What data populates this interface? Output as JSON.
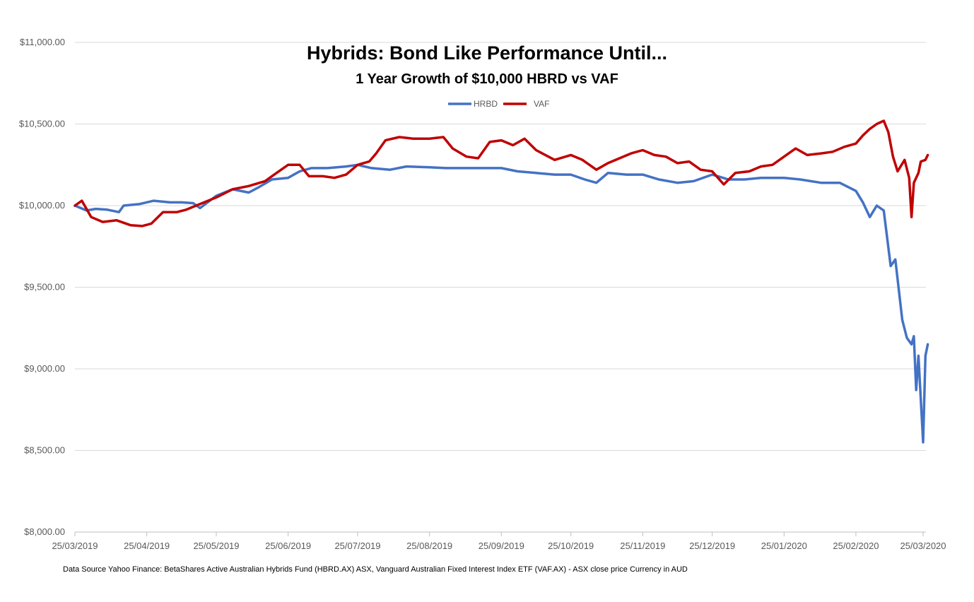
{
  "chart_data": {
    "type": "line",
    "title": "Hybrids: Bond Like Performance Until...",
    "subtitle": "1 Year Growth of $10,000 HBRD vs VAF",
    "ylim": [
      8000,
      11000
    ],
    "y_ticks": [
      "$8,000.00",
      "$8,500.00",
      "$9,000.00",
      "$9,500.00",
      "$10,000.00",
      "$10,500.00",
      "$11,000.00"
    ],
    "y_tick_values": [
      8000,
      8500,
      9000,
      9500,
      10000,
      10500,
      11000
    ],
    "xlim": [
      "2019-03-25",
      "2020-03-27"
    ],
    "x_ticks": [
      "25/03/2019",
      "25/04/2019",
      "25/05/2019",
      "25/06/2019",
      "25/07/2019",
      "25/08/2019",
      "25/09/2019",
      "25/10/2019",
      "25/11/2019",
      "25/12/2019",
      "25/01/2020",
      "25/02/2020",
      "25/03/2020"
    ],
    "x_tick_dates": [
      "2019-03-25",
      "2019-04-25",
      "2019-05-25",
      "2019-06-25",
      "2019-07-25",
      "2019-08-25",
      "2019-09-25",
      "2019-10-25",
      "2019-11-25",
      "2019-12-25",
      "2020-01-25",
      "2020-02-25",
      "2020-03-25"
    ],
    "grid": true,
    "legend_position": "top-center",
    "series": [
      {
        "name": "HRBD",
        "color": "#4472C4",
        "points": [
          [
            "2019-03-25",
            10000
          ],
          [
            "2019-03-30",
            9970
          ],
          [
            "2019-04-03",
            9980
          ],
          [
            "2019-04-08",
            9975
          ],
          [
            "2019-04-13",
            9960
          ],
          [
            "2019-04-15",
            10000
          ],
          [
            "2019-04-22",
            10010
          ],
          [
            "2019-04-28",
            10030
          ],
          [
            "2019-05-05",
            10020
          ],
          [
            "2019-05-10",
            10020
          ],
          [
            "2019-05-15",
            10015
          ],
          [
            "2019-05-18",
            9985
          ],
          [
            "2019-05-25",
            10060
          ],
          [
            "2019-06-01",
            10100
          ],
          [
            "2019-06-08",
            10080
          ],
          [
            "2019-06-12",
            10110
          ],
          [
            "2019-06-18",
            10160
          ],
          [
            "2019-06-25",
            10170
          ],
          [
            "2019-06-30",
            10210
          ],
          [
            "2019-07-05",
            10230
          ],
          [
            "2019-07-12",
            10230
          ],
          [
            "2019-07-20",
            10240
          ],
          [
            "2019-07-25",
            10250
          ],
          [
            "2019-07-31",
            10230
          ],
          [
            "2019-08-08",
            10220
          ],
          [
            "2019-08-15",
            10240
          ],
          [
            "2019-08-25",
            10235
          ],
          [
            "2019-09-01",
            10230
          ],
          [
            "2019-09-10",
            10230
          ],
          [
            "2019-09-20",
            10230
          ],
          [
            "2019-09-25",
            10230
          ],
          [
            "2019-10-02",
            10210
          ],
          [
            "2019-10-10",
            10200
          ],
          [
            "2019-10-18",
            10190
          ],
          [
            "2019-10-25",
            10190
          ],
          [
            "2019-10-31",
            10160
          ],
          [
            "2019-11-05",
            10140
          ],
          [
            "2019-11-10",
            10200
          ],
          [
            "2019-11-18",
            10190
          ],
          [
            "2019-11-25",
            10190
          ],
          [
            "2019-12-02",
            10160
          ],
          [
            "2019-12-10",
            10140
          ],
          [
            "2019-12-17",
            10150
          ],
          [
            "2019-12-25",
            10190
          ],
          [
            "2020-01-01",
            10160
          ],
          [
            "2020-01-08",
            10160
          ],
          [
            "2020-01-15",
            10170
          ],
          [
            "2020-01-25",
            10170
          ],
          [
            "2020-02-01",
            10160
          ],
          [
            "2020-02-10",
            10140
          ],
          [
            "2020-02-18",
            10140
          ],
          [
            "2020-02-25",
            10090
          ],
          [
            "2020-02-28",
            10020
          ],
          [
            "2020-03-02",
            9930
          ],
          [
            "2020-03-05",
            10000
          ],
          [
            "2020-03-08",
            9970
          ],
          [
            "2020-03-11",
            9630
          ],
          [
            "2020-03-13",
            9670
          ],
          [
            "2020-03-16",
            9300
          ],
          [
            "2020-03-18",
            9190
          ],
          [
            "2020-03-20",
            9150
          ],
          [
            "2020-03-21",
            9200
          ],
          [
            "2020-03-22",
            8870
          ],
          [
            "2020-03-23",
            9080
          ],
          [
            "2020-03-25",
            8550
          ],
          [
            "2020-03-26",
            9080
          ],
          [
            "2020-03-27",
            9150
          ]
        ]
      },
      {
        "name": "VAF",
        "color": "#C00000",
        "points": [
          [
            "2019-03-25",
            10000
          ],
          [
            "2019-03-28",
            10030
          ],
          [
            "2019-04-01",
            9930
          ],
          [
            "2019-04-06",
            9900
          ],
          [
            "2019-04-12",
            9910
          ],
          [
            "2019-04-18",
            9880
          ],
          [
            "2019-04-23",
            9875
          ],
          [
            "2019-04-27",
            9890
          ],
          [
            "2019-05-02",
            9960
          ],
          [
            "2019-05-08",
            9960
          ],
          [
            "2019-05-12",
            9975
          ],
          [
            "2019-05-18",
            10010
          ],
          [
            "2019-05-25",
            10050
          ],
          [
            "2019-06-01",
            10100
          ],
          [
            "2019-06-08",
            10120
          ],
          [
            "2019-06-15",
            10150
          ],
          [
            "2019-06-20",
            10200
          ],
          [
            "2019-06-25",
            10250
          ],
          [
            "2019-06-30",
            10250
          ],
          [
            "2019-07-04",
            10180
          ],
          [
            "2019-07-10",
            10180
          ],
          [
            "2019-07-15",
            10170
          ],
          [
            "2019-07-20",
            10190
          ],
          [
            "2019-07-25",
            10250
          ],
          [
            "2019-07-30",
            10270
          ],
          [
            "2019-08-02",
            10320
          ],
          [
            "2019-08-06",
            10400
          ],
          [
            "2019-08-12",
            10420
          ],
          [
            "2019-08-18",
            10410
          ],
          [
            "2019-08-25",
            10410
          ],
          [
            "2019-08-31",
            10420
          ],
          [
            "2019-09-04",
            10350
          ],
          [
            "2019-09-10",
            10300
          ],
          [
            "2019-09-15",
            10290
          ],
          [
            "2019-09-20",
            10390
          ],
          [
            "2019-09-25",
            10400
          ],
          [
            "2019-09-30",
            10370
          ],
          [
            "2019-10-05",
            10410
          ],
          [
            "2019-10-10",
            10340
          ],
          [
            "2019-10-18",
            10280
          ],
          [
            "2019-10-25",
            10310
          ],
          [
            "2019-10-30",
            10280
          ],
          [
            "2019-11-05",
            10220
          ],
          [
            "2019-11-10",
            10260
          ],
          [
            "2019-11-15",
            10290
          ],
          [
            "2019-11-20",
            10320
          ],
          [
            "2019-11-25",
            10340
          ],
          [
            "2019-11-30",
            10310
          ],
          [
            "2019-12-05",
            10300
          ],
          [
            "2019-12-10",
            10260
          ],
          [
            "2019-12-15",
            10270
          ],
          [
            "2019-12-20",
            10220
          ],
          [
            "2019-12-25",
            10210
          ],
          [
            "2019-12-30",
            10130
          ],
          [
            "2020-01-04",
            10200
          ],
          [
            "2020-01-10",
            10210
          ],
          [
            "2020-01-15",
            10240
          ],
          [
            "2020-01-20",
            10250
          ],
          [
            "2020-01-25",
            10300
          ],
          [
            "2020-01-30",
            10350
          ],
          [
            "2020-02-04",
            10310
          ],
          [
            "2020-02-10",
            10320
          ],
          [
            "2020-02-15",
            10330
          ],
          [
            "2020-02-20",
            10360
          ],
          [
            "2020-02-25",
            10380
          ],
          [
            "2020-02-28",
            10430
          ],
          [
            "2020-03-02",
            10470
          ],
          [
            "2020-03-05",
            10500
          ],
          [
            "2020-03-08",
            10520
          ],
          [
            "2020-03-10",
            10450
          ],
          [
            "2020-03-12",
            10300
          ],
          [
            "2020-03-14",
            10210
          ],
          [
            "2020-03-17",
            10280
          ],
          [
            "2020-03-19",
            10170
          ],
          [
            "2020-03-20",
            9930
          ],
          [
            "2020-03-21",
            10140
          ],
          [
            "2020-03-23",
            10200
          ],
          [
            "2020-03-24",
            10270
          ],
          [
            "2020-03-26",
            10280
          ],
          [
            "2020-03-27",
            10310
          ]
        ]
      }
    ]
  },
  "footer": {
    "source": "Data Source Yahoo Finance: BetaShares Active Australian Hybrids Fund (HBRD.AX) ASX, Vanguard Australian Fixed Interest Index ETF (VAF.AX) - ASX close price Currency in AUD"
  }
}
